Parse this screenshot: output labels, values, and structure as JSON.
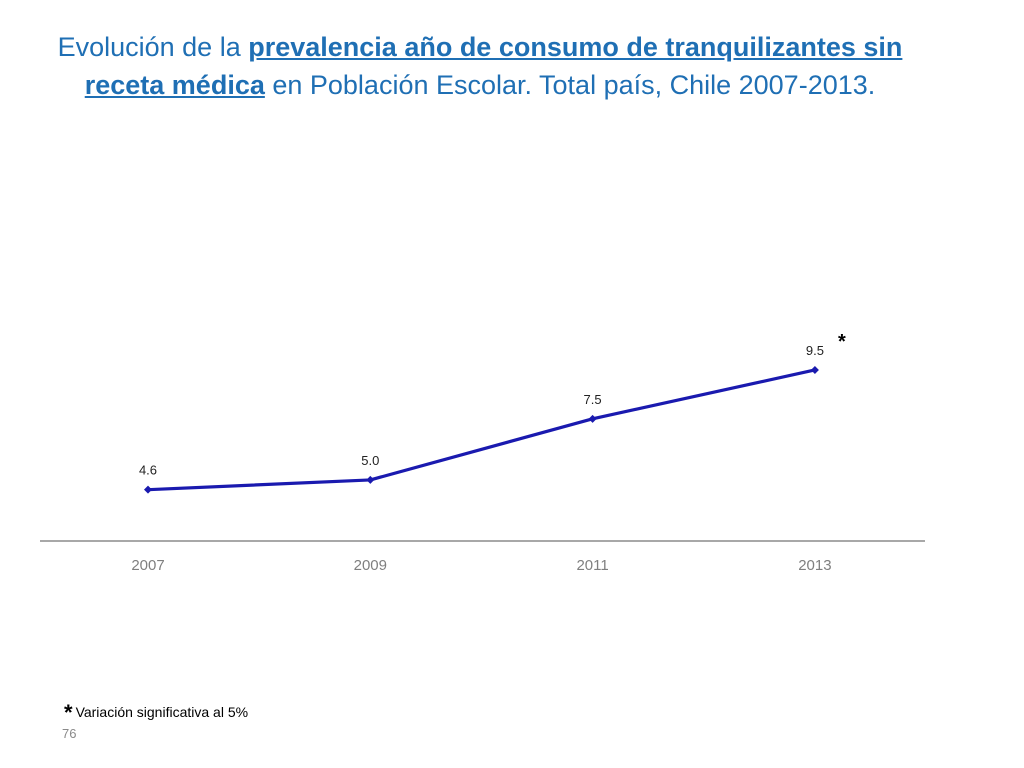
{
  "title": {
    "part1": "Evolución de la ",
    "highlight": "prevalencia año de consumo de tranquilizantes sin receta médica",
    "part2": " en Población Escolar. Total país, Chile 2007-2013."
  },
  "chart_data": {
    "type": "line",
    "title": "Evolución de la prevalencia año de consumo de tranquilizantes sin receta médica en Población Escolar. Total país, Chile 2007-2013.",
    "categories": [
      "2007",
      "2009",
      "2011",
      "2013"
    ],
    "series": [
      {
        "values": [
          4.6,
          5.0,
          7.5,
          9.5
        ],
        "labels": [
          "4.6",
          "5.0",
          "7.5",
          "9.5"
        ],
        "color": "#1a1aaf"
      }
    ],
    "ylim": [
      2.5,
      14
    ],
    "grid": false,
    "legend": "none",
    "significance_marker": {
      "category": "2013",
      "symbol": "*"
    }
  },
  "footnote": {
    "symbol": "*",
    "text": "Variación significativa al 5%"
  },
  "page_number": "76"
}
